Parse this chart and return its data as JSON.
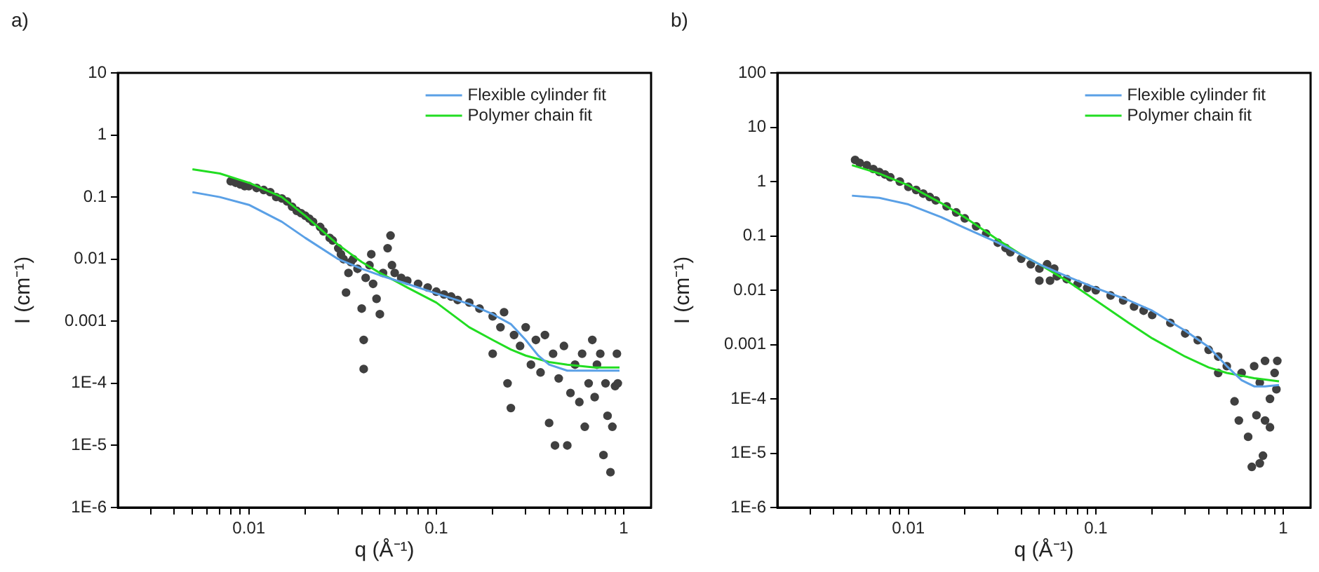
{
  "chart_data": [
    {
      "type": "scatter",
      "title": "a)",
      "xlabel": "q (Å⁻¹)",
      "ylabel": "I (cm⁻¹)",
      "log": "xy",
      "grid": false,
      "legend": "top right",
      "xlim": [
        0.002,
        1.4
      ],
      "xticks": [
        {
          "value": 0.003,
          "label": null
        },
        {
          "value": 0.004,
          "label": null
        },
        {
          "value": 0.005,
          "label": null
        },
        {
          "value": 0.006,
          "label": null
        },
        {
          "value": 0.007,
          "label": null
        },
        {
          "value": 0.008,
          "label": null
        },
        {
          "value": 0.009,
          "label": null
        },
        0.01,
        {
          "value": 0.02,
          "label": null
        },
        {
          "value": 0.03,
          "label": null
        },
        {
          "value": 0.04,
          "label": null
        },
        {
          "value": 0.05,
          "label": null
        },
        {
          "value": 0.06,
          "label": null
        },
        {
          "value": 0.07,
          "label": null
        },
        {
          "value": 0.08,
          "label": null
        },
        {
          "value": 0.09,
          "label": null
        },
        0.1,
        {
          "value": 0.2,
          "label": null
        },
        {
          "value": 0.3,
          "label": null
        },
        {
          "value": 0.4,
          "label": null
        },
        {
          "value": 0.5,
          "label": null
        },
        {
          "value": 0.6,
          "label": null
        },
        {
          "value": 0.7,
          "label": null
        },
        {
          "value": 0.8,
          "label": null
        },
        {
          "value": 0.9,
          "label": null
        },
        1
      ],
      "ylim": [
        1e-06,
        10
      ],
      "yticks": [
        {
          "value": 1e-06,
          "label": "1E-6"
        },
        {
          "value": 1e-05,
          "label": "1E-5"
        },
        {
          "value": 0.0001,
          "label": "1E-4"
        },
        0.001,
        0.01,
        0.1,
        1,
        10
      ],
      "series": [
        {
          "type": "scatter",
          "marker": "circle",
          "color": "#404040",
          "x": [
            0.008,
            0.0085,
            0.009,
            0.0095,
            0.01,
            0.011,
            0.012,
            0.013,
            0.014,
            0.015,
            0.016,
            0.017,
            0.018,
            0.019,
            0.02,
            0.021,
            0.022,
            0.024,
            0.025,
            0.027,
            0.028,
            0.03,
            0.031,
            0.032,
            0.033,
            0.034,
            0.035,
            0.036,
            0.038,
            0.04,
            0.041,
            0.041,
            0.042,
            0.044,
            0.045,
            0.046,
            0.048,
            0.05,
            0.052,
            0.055,
            0.057,
            0.058,
            0.06,
            0.065,
            0.07,
            0.08,
            0.09,
            0.1,
            0.11,
            0.12,
            0.13,
            0.15,
            0.17,
            0.2,
            0.2,
            0.22,
            0.23,
            0.24,
            0.25,
            0.26,
            0.28,
            0.3,
            0.32,
            0.34,
            0.36,
            0.38,
            0.4,
            0.42,
            0.43,
            0.45,
            0.48,
            0.5,
            0.52,
            0.55,
            0.58,
            0.6,
            0.62,
            0.65,
            0.68,
            0.7,
            0.72,
            0.75,
            0.78,
            0.8,
            0.82,
            0.85,
            0.87,
            0.9,
            0.92,
            0.93
          ],
          "values": [
            0.18,
            0.17,
            0.16,
            0.15,
            0.15,
            0.14,
            0.13,
            0.12,
            0.1,
            0.095,
            0.085,
            0.07,
            0.06,
            0.055,
            0.05,
            0.045,
            0.04,
            0.033,
            0.028,
            0.022,
            0.02,
            0.015,
            0.012,
            0.01,
            0.0029,
            0.006,
            0.009,
            0.01,
            0.007,
            0.0016,
            0.0005,
            0.00017,
            0.005,
            0.008,
            0.012,
            0.004,
            0.0023,
            0.0013,
            0.006,
            0.015,
            0.024,
            0.008,
            0.006,
            0.005,
            0.0045,
            0.004,
            0.0035,
            0.003,
            0.0027,
            0.0025,
            0.0022,
            0.002,
            0.0016,
            0.0012,
            0.0003,
            0.0008,
            0.0014,
            0.0001,
            4e-05,
            0.0006,
            0.0004,
            0.0008,
            0.0002,
            0.0005,
            0.00015,
            0.0006,
            2.3e-05,
            0.0003,
            1e-05,
            0.00012,
            0.0004,
            1e-05,
            7e-05,
            0.0002,
            5e-05,
            0.0003,
            2e-05,
            0.0001,
            0.0005,
            6e-05,
            0.0002,
            0.0003,
            7e-06,
            0.0001,
            3e-05,
            3.7e-06,
            2e-05,
            9e-05,
            0.0003,
            0.0001
          ]
        },
        {
          "type": "line",
          "name": "Flexible cylinder fit",
          "color": "#5aa0e6",
          "x": [
            0.005,
            0.007,
            0.01,
            0.015,
            0.02,
            0.03,
            0.04,
            0.05,
            0.07,
            0.1,
            0.15,
            0.2,
            0.25,
            0.3,
            0.35,
            0.4,
            0.5,
            0.7,
            0.95
          ],
          "values": [
            0.12,
            0.1,
            0.075,
            0.04,
            0.022,
            0.01,
            0.007,
            0.0055,
            0.004,
            0.0028,
            0.0019,
            0.0013,
            0.0009,
            0.0005,
            0.00028,
            0.0002,
            0.00016,
            0.00016,
            0.00016
          ]
        },
        {
          "type": "line",
          "name": "Polymer chain fit",
          "color": "#22dd22",
          "x": [
            0.005,
            0.007,
            0.01,
            0.015,
            0.02,
            0.03,
            0.04,
            0.05,
            0.06,
            0.07,
            0.1,
            0.15,
            0.2,
            0.25,
            0.3,
            0.4,
            0.5,
            0.7,
            0.95
          ],
          "values": [
            0.28,
            0.24,
            0.17,
            0.1,
            0.05,
            0.017,
            0.009,
            0.006,
            0.0045,
            0.0035,
            0.002,
            0.0008,
            0.0005,
            0.00035,
            0.00028,
            0.00022,
            0.0002,
            0.00018,
            0.00018
          ]
        }
      ]
    },
    {
      "type": "scatter",
      "title": "b)",
      "xlabel": "q (Å⁻¹)",
      "ylabel": "I (cm⁻¹)",
      "log": "xy",
      "grid": false,
      "legend": "top right",
      "xlim": [
        0.002,
        1.4
      ],
      "xticks": [
        {
          "value": 0.003,
          "label": null
        },
        {
          "value": 0.004,
          "label": null
        },
        {
          "value": 0.005,
          "label": null
        },
        {
          "value": 0.006,
          "label": null
        },
        {
          "value": 0.007,
          "label": null
        },
        {
          "value": 0.008,
          "label": null
        },
        {
          "value": 0.009,
          "label": null
        },
        0.01,
        {
          "value": 0.02,
          "label": null
        },
        {
          "value": 0.03,
          "label": null
        },
        {
          "value": 0.04,
          "label": null
        },
        {
          "value": 0.05,
          "label": null
        },
        {
          "value": 0.06,
          "label": null
        },
        {
          "value": 0.07,
          "label": null
        },
        {
          "value": 0.08,
          "label": null
        },
        {
          "value": 0.09,
          "label": null
        },
        0.1,
        {
          "value": 0.2,
          "label": null
        },
        {
          "value": 0.3,
          "label": null
        },
        {
          "value": 0.4,
          "label": null
        },
        {
          "value": 0.5,
          "label": null
        },
        {
          "value": 0.6,
          "label": null
        },
        {
          "value": 0.7,
          "label": null
        },
        {
          "value": 0.8,
          "label": null
        },
        {
          "value": 0.9,
          "label": null
        },
        1
      ],
      "ylim": [
        1e-06,
        100
      ],
      "yticks": [
        {
          "value": 1e-06,
          "label": "1E-6"
        },
        {
          "value": 1e-05,
          "label": "1E-5"
        },
        {
          "value": 0.0001,
          "label": "1E-4"
        },
        0.001,
        0.01,
        0.1,
        1,
        10,
        100
      ],
      "series": [
        {
          "type": "scatter",
          "marker": "circle",
          "color": "#404040",
          "x": [
            0.0052,
            0.0055,
            0.006,
            0.0065,
            0.007,
            0.0075,
            0.008,
            0.009,
            0.01,
            0.011,
            0.012,
            0.013,
            0.014,
            0.016,
            0.018,
            0.02,
            0.023,
            0.026,
            0.03,
            0.033,
            0.035,
            0.04,
            0.045,
            0.05,
            0.05,
            0.055,
            0.057,
            0.06,
            0.062,
            0.07,
            0.08,
            0.09,
            0.1,
            0.12,
            0.14,
            0.16,
            0.18,
            0.2,
            0.25,
            0.3,
            0.35,
            0.4,
            0.45,
            0.45,
            0.5,
            0.55,
            0.58,
            0.6,
            0.65,
            0.68,
            0.7,
            0.72,
            0.75,
            0.75,
            0.78,
            0.8,
            0.8,
            0.85,
            0.85,
            0.9,
            0.92,
            0.93
          ],
          "values": [
            2.5,
            2.2,
            2.0,
            1.7,
            1.5,
            1.35,
            1.2,
            1.0,
            0.8,
            0.7,
            0.6,
            0.52,
            0.45,
            0.35,
            0.27,
            0.21,
            0.15,
            0.11,
            0.075,
            0.06,
            0.05,
            0.038,
            0.03,
            0.025,
            0.015,
            0.03,
            0.015,
            0.025,
            0.018,
            0.016,
            0.013,
            0.011,
            0.01,
            0.008,
            0.0065,
            0.005,
            0.0042,
            0.0035,
            0.0025,
            0.0016,
            0.0012,
            0.0008,
            0.0006,
            0.0003,
            0.0004,
            9e-05,
            4e-05,
            0.0003,
            2e-05,
            5.6e-06,
            0.0004,
            5e-05,
            0.0002,
            6.5e-06,
            9e-06,
            0.0005,
            4e-05,
            0.0001,
            3e-05,
            0.0003,
            0.00015,
            0.0005
          ]
        },
        {
          "type": "line",
          "name": "Flexible cylinder fit",
          "color": "#5aa0e6",
          "x": [
            0.005,
            0.007,
            0.01,
            0.015,
            0.02,
            0.03,
            0.04,
            0.05,
            0.07,
            0.1,
            0.15,
            0.2,
            0.3,
            0.4,
            0.5,
            0.6,
            0.7,
            0.8,
            0.95
          ],
          "values": [
            0.55,
            0.5,
            0.38,
            0.22,
            0.14,
            0.075,
            0.045,
            0.03,
            0.018,
            0.011,
            0.0065,
            0.0042,
            0.0018,
            0.0009,
            0.0004,
            0.00022,
            0.00017,
            0.00017,
            0.00018
          ]
        },
        {
          "type": "line",
          "name": "Polymer chain fit",
          "color": "#22dd22",
          "x": [
            0.005,
            0.007,
            0.01,
            0.015,
            0.02,
            0.03,
            0.04,
            0.05,
            0.07,
            0.1,
            0.15,
            0.2,
            0.3,
            0.4,
            0.5,
            0.7,
            0.95
          ],
          "values": [
            2.0,
            1.4,
            0.85,
            0.4,
            0.22,
            0.085,
            0.045,
            0.03,
            0.015,
            0.0065,
            0.0025,
            0.0013,
            0.0006,
            0.00038,
            0.0003,
            0.00024,
            0.00021
          ]
        }
      ]
    }
  ]
}
